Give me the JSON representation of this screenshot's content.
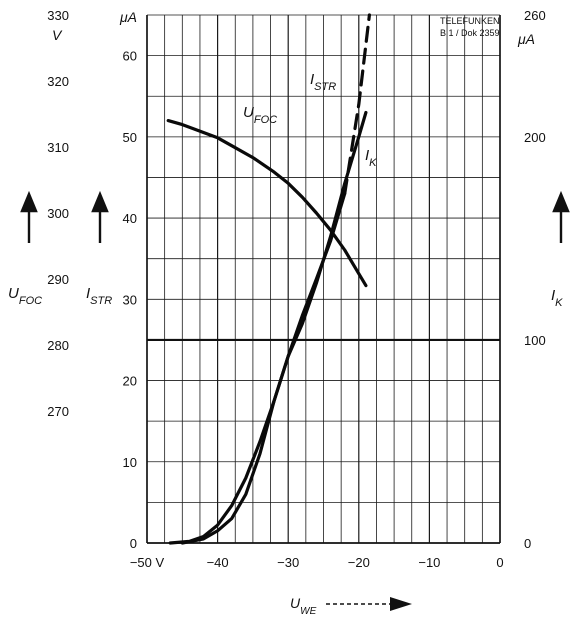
{
  "chart_data": {
    "type": "line",
    "stamp": [
      "TELEFUNKEN",
      "B 1 / Dok 2359"
    ],
    "x_axis": {
      "label": "U",
      "label_sub": "WE",
      "range": [
        -50,
        0
      ],
      "ticks": [
        -50,
        -40,
        -30,
        -20,
        -10,
        0
      ],
      "tick_labels": [
        "−50 V",
        "−40",
        "−30",
        "−20",
        "−10",
        "0"
      ]
    },
    "axes": {
      "ufoc": {
        "label": "U",
        "label_sub": "FOC",
        "unit": "V",
        "range": [
          250,
          330
        ],
        "ticks": [
          270,
          280,
          290,
          300,
          310,
          320,
          330
        ],
        "tick_labels": [
          "270",
          "280",
          "290",
          "300",
          "310",
          "320",
          "330"
        ]
      },
      "istr": {
        "label": "I",
        "label_sub": "STR",
        "unit": "μA",
        "range": [
          0,
          65
        ],
        "ticks": [
          0,
          10,
          20,
          30,
          40,
          50,
          60
        ],
        "tick_labels": [
          "0",
          "10",
          "20",
          "30",
          "40",
          "50",
          "60"
        ]
      },
      "ik": {
        "label": "I",
        "label_sub": "K",
        "unit": "μA",
        "range": [
          0,
          260
        ],
        "ticks": [
          0,
          100,
          200,
          260
        ],
        "tick_labels": [
          "0",
          "100",
          "200",
          "260"
        ]
      }
    },
    "series": [
      {
        "name": "U",
        "name_sub": "FOC",
        "axis": "ufoc",
        "style": "solid",
        "x": [
          -47,
          -45,
          -42,
          -40,
          -38,
          -35,
          -32,
          -30,
          -28,
          -26,
          -24,
          -22,
          -20,
          -19
        ],
        "y": [
          314,
          313.4,
          312.2,
          311.4,
          310.2,
          308.4,
          306.2,
          304.5,
          302.4,
          300,
          297.4,
          294.4,
          290.8,
          289
        ]
      },
      {
        "name": "I",
        "name_sub": "STR",
        "axis": "istr",
        "style": "solid_then_dashed",
        "dashed_from_x": -22,
        "x": [
          -46.7,
          -44,
          -42,
          -40,
          -38,
          -36,
          -34,
          -32,
          -30,
          -28,
          -26,
          -24,
          -22,
          -20,
          -18.5
        ],
        "y": [
          0,
          0.2,
          0.8,
          2.2,
          4.6,
          8,
          12.5,
          17.5,
          23,
          28,
          32.5,
          37.2,
          43,
          54,
          65
        ]
      },
      {
        "name": "I",
        "name_sub": "K",
        "axis": "ik",
        "style": "solid",
        "x": [
          -45,
          -42,
          -40,
          -38,
          -36,
          -34,
          -32,
          -30,
          -28,
          -26,
          -24,
          -22,
          -20,
          -19
        ],
        "y": [
          0,
          2,
          6,
          12,
          24,
          44,
          70,
          92,
          108,
          128,
          151,
          177,
          200,
          212
        ]
      }
    ]
  }
}
